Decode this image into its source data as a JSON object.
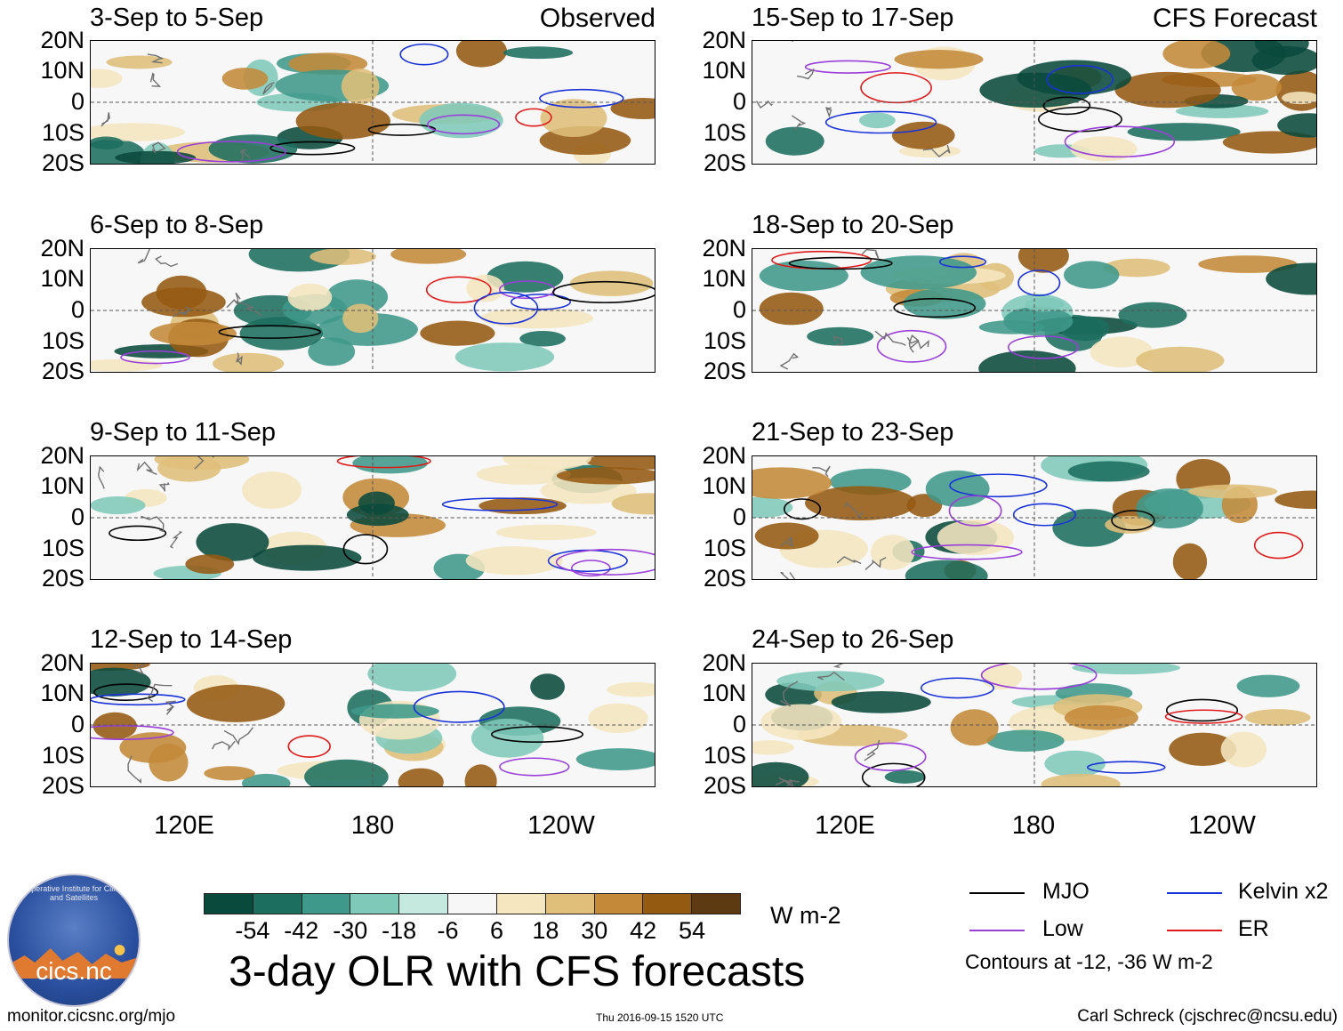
{
  "chart_data": {
    "type": "heatmap",
    "title": "3-day OLR with CFS forecasts",
    "units": "W m-2",
    "xlabel": "",
    "ylabel": "",
    "x_tick_labels": [
      "120E",
      "180",
      "120W"
    ],
    "y_tick_labels": [
      "20N",
      "10N",
      "0",
      "10S",
      "20S"
    ],
    "colorbar_ticks": [
      "-54",
      "-42",
      "-30",
      "-18",
      "-6",
      "6",
      "18",
      "30",
      "42",
      "54"
    ],
    "colorbar_colors": [
      "#0a4a3c",
      "#1c6e5f",
      "#3f998a",
      "#7fc9b9",
      "#c6e9df",
      "#f7f7f7",
      "#f5e6c0",
      "#dfbf7a",
      "#c48a3a",
      "#955a12",
      "#5e3a12"
    ],
    "panels": [
      {
        "id": "obs-1",
        "group": "Observed",
        "period": "3-Sep to 5-Sep",
        "corner_label": "Observed"
      },
      {
        "id": "obs-2",
        "group": "Observed",
        "period": "6-Sep to 8-Sep",
        "corner_label": ""
      },
      {
        "id": "obs-3",
        "group": "Observed",
        "period": "9-Sep to 11-Sep",
        "corner_label": ""
      },
      {
        "id": "obs-4",
        "group": "Observed",
        "period": "12-Sep to 14-Sep",
        "corner_label": ""
      },
      {
        "id": "fcst-1",
        "group": "CFS Forecast",
        "period": "15-Sep to 17-Sep",
        "corner_label": "CFS Forecast"
      },
      {
        "id": "fcst-2",
        "group": "CFS Forecast",
        "period": "18-Sep to 20-Sep",
        "corner_label": ""
      },
      {
        "id": "fcst-3",
        "group": "CFS Forecast",
        "period": "21-Sep to 23-Sep",
        "corner_label": ""
      },
      {
        "id": "fcst-4",
        "group": "CFS Forecast",
        "period": "24-Sep to 26-Sep",
        "corner_label": ""
      }
    ],
    "legend": [
      {
        "name": "MJO",
        "color": "#000000"
      },
      {
        "name": "Kelvin x2",
        "color": "#1a33d9"
      },
      {
        "name": "Low",
        "color": "#9a3fd9"
      },
      {
        "name": "ER",
        "color": "#e01a1a"
      }
    ],
    "contour_note": "Contours at -12, -36 W m-2"
  },
  "logo": {
    "text": "cics.nc",
    "ring_text": "Cooperative Institute for Climate and Satellites"
  },
  "footer": {
    "left": "monitor.cicsnc.org/mjo",
    "center": "Thu 2016-09-15 1520 UTC",
    "right": "Carl Schreck (cjschrec@ncsu.edu)"
  }
}
